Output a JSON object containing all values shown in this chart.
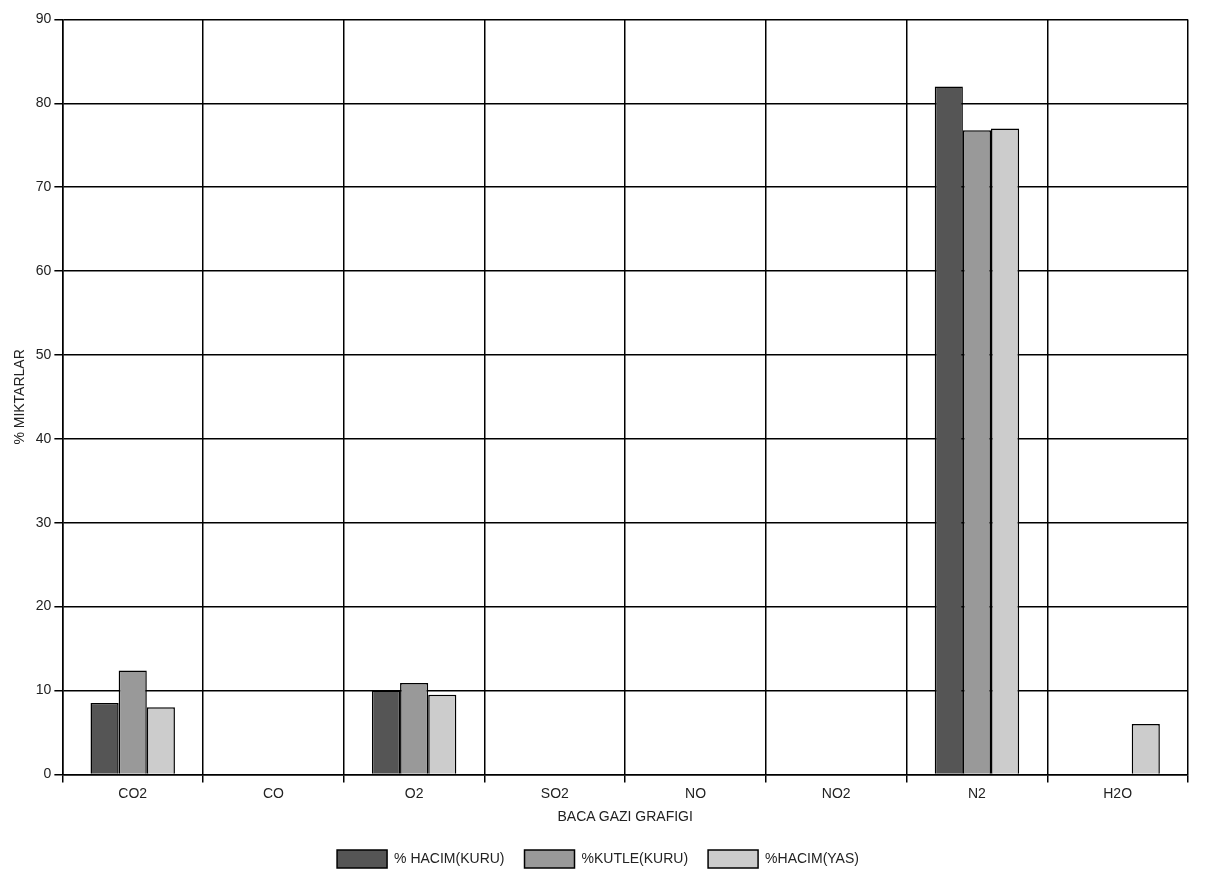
{
  "chart_data": {
    "type": "bar",
    "xlabel": "BACA GAZI GRAFIGI",
    "ylabel": "% MIKTARLAR",
    "categories": [
      "CO2",
      "CO",
      "O2",
      "SO2",
      "NO",
      "NO2",
      "N2",
      "H2O"
    ],
    "series": [
      {
        "name": "% HACIM(KURU)",
        "color": "#555555",
        "values": [
          8.5,
          0,
          10,
          0,
          0,
          0,
          82,
          0
        ]
      },
      {
        "name": "%KUTLE(KURU)",
        "color": "#999999",
        "values": [
          12.4,
          0,
          10.9,
          0,
          0,
          0,
          76.8,
          0
        ]
      },
      {
        "name": "%HACIM(YAS)",
        "color": "#cccccc",
        "values": [
          8,
          0,
          9.5,
          0,
          0,
          0,
          77,
          6
        ]
      }
    ],
    "ylim": [
      0,
      90
    ],
    "yticks": [
      0,
      10,
      20,
      30,
      40,
      50,
      60,
      70,
      80,
      90
    ],
    "grid": true,
    "legend": "bottom"
  }
}
